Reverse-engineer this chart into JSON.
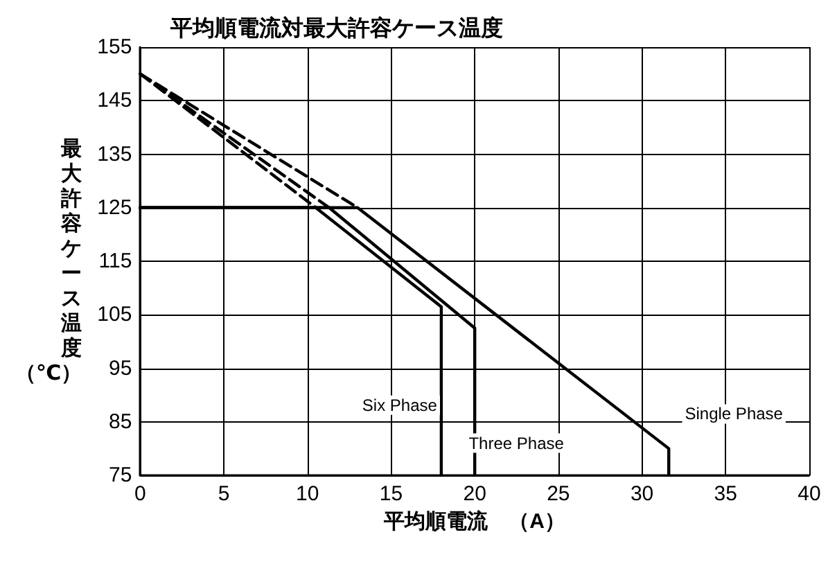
{
  "chart_data": {
    "type": "line",
    "title": "平均順電流対最大許容ケース温度",
    "xlabel": "平均順電流　（A）",
    "ylabel": "最大許容ケース温度（℃）",
    "series": [
      {
        "name": "Single Phase",
        "color": "#000000",
        "line_style": "solid",
        "x": [
          0,
          13,
          31.6,
          31.6
        ],
        "values": [
          125,
          125,
          80,
          75
        ]
      },
      {
        "name": "Three Phase",
        "color": "#000000",
        "line_style": "solid",
        "x": [
          0,
          11.3,
          20,
          20
        ],
        "values": [
          125,
          125,
          102.5,
          75
        ]
      },
      {
        "name": "Six Phase",
        "color": "#000000",
        "line_style": "solid",
        "x": [
          0,
          10.5,
          18,
          18
        ],
        "values": [
          125,
          125,
          106.5,
          75
        ]
      },
      {
        "color": "#000000",
        "line_style": "dashed",
        "x": [
          0,
          13
        ],
        "values": [
          150,
          125
        ]
      },
      {
        "color": "#000000",
        "line_style": "dashed",
        "x": [
          0,
          11.3
        ],
        "values": [
          150,
          125
        ]
      },
      {
        "color": "#000000",
        "line_style": "dashed",
        "x": [
          0,
          10.5
        ],
        "values": [
          150,
          125
        ]
      }
    ],
    "xlim": [
      0,
      40
    ],
    "xticks": [
      0,
      5,
      10,
      15,
      20,
      25,
      30,
      35,
      40
    ],
    "ylim": [
      75,
      155
    ],
    "yticks": [
      75,
      85,
      95,
      105,
      115,
      125,
      135,
      145,
      155
    ],
    "grid": true,
    "marker": "none"
  }
}
